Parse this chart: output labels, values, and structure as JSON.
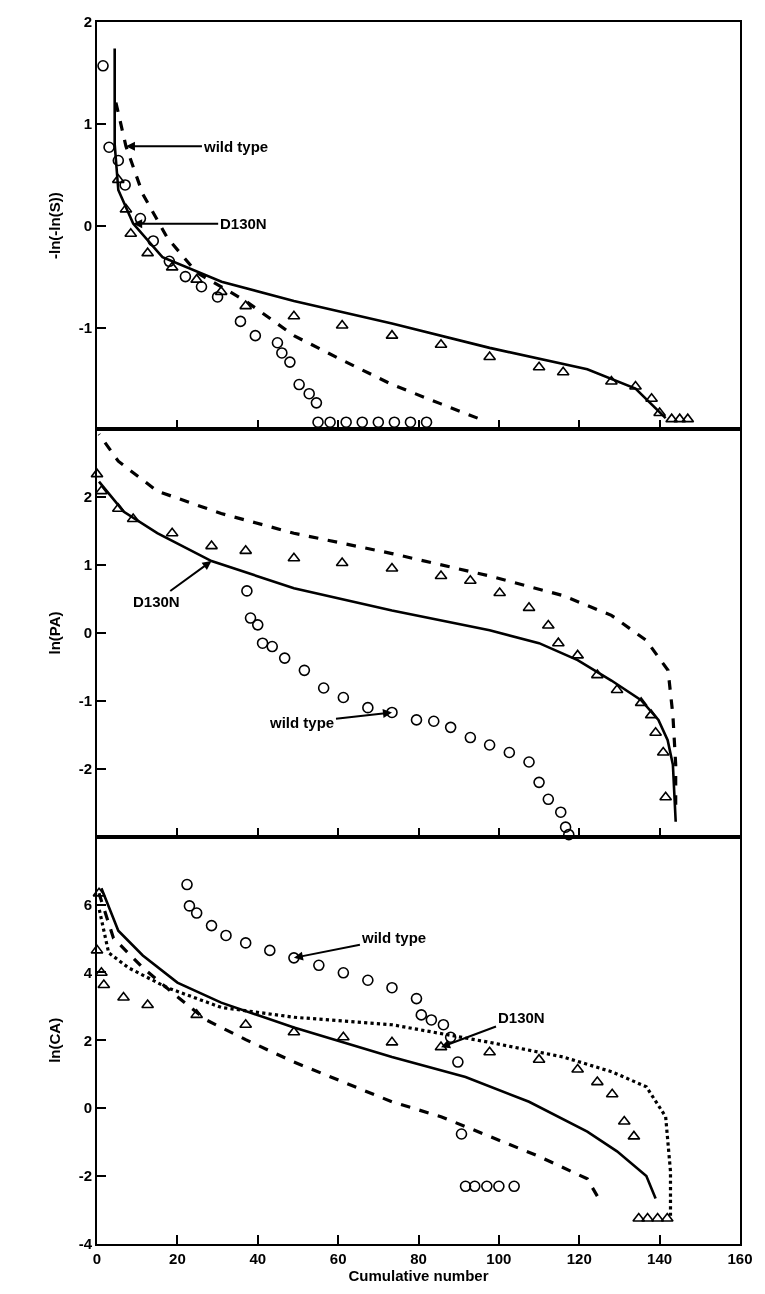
{
  "chart_data": [
    {
      "type": "scatter",
      "ylabel": "-ln(-ln(S))",
      "xlim": [
        0,
        160
      ],
      "xticks": [
        0,
        20,
        40,
        60,
        80,
        100,
        120,
        140,
        160
      ],
      "ylim": [
        -2,
        2
      ],
      "yticks": [
        -1,
        0,
        1,
        2
      ],
      "tick_labels": "y",
      "series": [
        {
          "marker": "circle",
          "color": "#000000",
          "x": [
            1.5,
            3,
            5.3,
            7,
            10.8,
            14,
            18,
            22,
            26,
            30,
            35.7,
            39.4,
            44.9,
            46,
            48,
            50.3,
            52.8,
            54.6,
            55,
            58,
            62,
            66,
            70,
            74,
            78,
            82
          ],
          "values": [
            1.57,
            0.77,
            0.64,
            0.4,
            0.07,
            -0.15,
            -0.35,
            -0.5,
            -0.6,
            -0.7,
            -0.94,
            -1.08,
            -1.15,
            -1.25,
            -1.34,
            -1.56,
            -1.65,
            -1.74,
            -1.93,
            -1.93,
            -1.93,
            -1.93,
            -1.93,
            -1.93,
            -1.93,
            -1.93
          ]
        },
        {
          "marker": "triangle",
          "color": "#000000",
          "x": [
            5.3,
            7.2,
            8.4,
            12.6,
            18.7,
            24.8,
            30.9,
            37,
            49,
            61,
            73.4,
            85.6,
            97.7,
            110,
            116,
            128,
            134,
            138,
            140,
            143,
            145,
            147
          ],
          "values": [
            0.45,
            0.16,
            -0.08,
            -0.27,
            -0.41,
            -0.53,
            -0.65,
            -0.79,
            -0.89,
            -0.98,
            -1.08,
            -1.17,
            -1.29,
            -1.39,
            -1.44,
            -1.53,
            -1.58,
            -1.7,
            -1.84,
            -1.9,
            -1.9,
            -1.9
          ]
        },
        {
          "type": "line",
          "line_style": "solid",
          "color": "#000000",
          "x": [
            4.4,
            4.4,
            5.3,
            9,
            16.3,
            31,
            49,
            73.4,
            97.7,
            122,
            134,
            141.5
          ],
          "values": [
            1.74,
            0.8,
            0.35,
            0.02,
            -0.31,
            -0.55,
            -0.74,
            -0.96,
            -1.2,
            -1.41,
            -1.6,
            -1.89
          ]
        },
        {
          "type": "line",
          "line_style": "dashed",
          "color": "#000000",
          "x": [
            4.7,
            7.2,
            11.4,
            17.5,
            24.8,
            37,
            49,
            61,
            73.4,
            85.6,
            94.7
          ],
          "values": [
            1.21,
            0.78,
            0.31,
            -0.12,
            -0.46,
            -0.74,
            -1.08,
            -1.32,
            -1.56,
            -1.75,
            -1.89
          ]
        }
      ],
      "annotations": [
        {
          "text": "wild type",
          "x": 7.2,
          "y": 0.78
        },
        {
          "text": "D130N",
          "x": 9,
          "y": 0.02
        }
      ]
    },
    {
      "type": "scatter",
      "ylabel": "ln(PA)",
      "xlim": [
        0,
        160
      ],
      "xticks": [
        0,
        20,
        40,
        60,
        80,
        100,
        120,
        140,
        160
      ],
      "ylim": [
        -3,
        3
      ],
      "yticks": [
        -2,
        -1,
        0,
        1,
        2
      ],
      "tick_labels": "y",
      "series": [
        {
          "marker": "circle",
          "color": "#000000",
          "x": [
            37.3,
            38.2,
            40,
            41.2,
            43.6,
            46.7,
            51.6,
            56.4,
            61.3,
            67.4,
            73.4,
            79.5,
            83.8,
            88,
            92.9,
            97.7,
            102.6,
            107.5,
            110,
            112.3,
            115.4,
            116.6,
            117.4
          ],
          "values": [
            0.62,
            0.22,
            0.12,
            -0.15,
            -0.2,
            -0.37,
            -0.55,
            -0.81,
            -0.95,
            -1.1,
            -1.17,
            -1.28,
            -1.3,
            -1.39,
            -1.54,
            -1.65,
            -1.76,
            -1.9,
            -2.2,
            -2.45,
            -2.64,
            -2.86,
            -2.97
          ]
        },
        {
          "marker": "triangle",
          "color": "#000000",
          "x": [
            0,
            1.1,
            5.3,
            9,
            18.7,
            28.5,
            37,
            49,
            61,
            73.4,
            85.6,
            92.9,
            100.2,
            107.5,
            112.3,
            114.8,
            119.6,
            124.5,
            129.4,
            135.4,
            137.9,
            139,
            140.9,
            141.5
          ],
          "values": [
            2.34,
            2.09,
            1.83,
            1.68,
            1.47,
            1.28,
            1.21,
            1.1,
            1.03,
            0.95,
            0.84,
            0.77,
            0.59,
            0.37,
            0.11,
            -0.15,
            -0.33,
            -0.62,
            -0.84,
            -1.03,
            -1.21,
            -1.47,
            -1.76,
            -2.42
          ]
        },
        {
          "type": "line",
          "line_style": "solid",
          "color": "#000000",
          "x": [
            0.5,
            6.6,
            15,
            28.5,
            49,
            73.4,
            97.7,
            110,
            119.6,
            128,
            135.4,
            139.7,
            142,
            143.3,
            144
          ],
          "values": [
            2.23,
            1.79,
            1.47,
            1.06,
            0.66,
            0.33,
            0.04,
            -0.15,
            -0.4,
            -0.7,
            -0.99,
            -1.28,
            -1.58,
            -1.94,
            -2.78
          ]
        },
        {
          "type": "line",
          "line_style": "dashed",
          "color": "#000000",
          "x": [
            0.5,
            5.3,
            15,
            30.9,
            49,
            73.4,
            97.7,
            116,
            128,
            136.7,
            142.1,
            143.3,
            144,
            144
          ],
          "values": [
            2.93,
            2.53,
            2.09,
            1.76,
            1.47,
            1.17,
            0.84,
            0.55,
            0.26,
            -0.11,
            -0.55,
            -1.21,
            -1.94,
            -2.53
          ]
        }
      ],
      "annotations": [
        {
          "text": "D130N",
          "x": 28.5,
          "y": 1.06
        },
        {
          "text": "wild type",
          "x": 73.4,
          "y": -1.17
        }
      ]
    },
    {
      "type": "scatter",
      "ylabel": "ln(CA)",
      "xlabel": "Cumulative number",
      "xlim": [
        0,
        160
      ],
      "xticks": [
        0,
        20,
        40,
        60,
        80,
        100,
        120,
        140,
        160
      ],
      "ylim": [
        -4,
        8
      ],
      "yticks": [
        -4,
        -2,
        0,
        2,
        4,
        6
      ],
      "series": [
        {
          "marker": "circle",
          "color": "#000000",
          "x": [
            22.4,
            23,
            24.8,
            28.5,
            32.1,
            37,
            43,
            49,
            55.2,
            61.3,
            67.4,
            73.4,
            79.5,
            80.7,
            83.2,
            86.2,
            88,
            89.8,
            90.7,
            91.7,
            94,
            97,
            100,
            103.8
          ],
          "values": [
            6.59,
            5.96,
            5.75,
            5.38,
            5.09,
            4.87,
            4.65,
            4.43,
            4.21,
            3.99,
            3.77,
            3.55,
            3.23,
            2.75,
            2.6,
            2.46,
            2.09,
            1.36,
            -0.76,
            -2.3,
            -2.3,
            -2.3,
            -2.3,
            -2.3
          ]
        },
        {
          "marker": "triangle",
          "color": "#000000",
          "x": [
            0,
            0.5,
            1.1,
            1.7,
            6.6,
            12.6,
            24.8,
            37,
            49,
            61.3,
            73.4,
            85.6,
            97.7,
            110,
            119.6,
            124.5,
            128.2,
            131.2,
            133.6,
            134.8,
            137,
            139.5,
            141.9
          ],
          "values": [
            4.65,
            6.33,
            3.99,
            3.63,
            3.26,
            3.04,
            2.75,
            2.46,
            2.24,
            2.09,
            1.94,
            1.8,
            1.65,
            1.43,
            1.14,
            0.77,
            0.41,
            -0.39,
            -0.83,
            -3.25,
            -3.25,
            -3.25,
            -3.25
          ]
        },
        {
          "type": "line",
          "line_style": "solid",
          "color": "#000000",
          "x": [
            1.1,
            5.3,
            11.4,
            20,
            30.9,
            49,
            73.4,
            91.7,
            107.5,
            122,
            129.4,
            136.7,
            139
          ],
          "values": [
            6.48,
            5.23,
            4.5,
            3.7,
            3.11,
            2.38,
            1.51,
            0.92,
            0.19,
            -0.69,
            -1.27,
            -2.0,
            -2.66
          ]
        },
        {
          "type": "line",
          "line_style": "dashed",
          "color": "#000000",
          "x": [
            0.5,
            4.1,
            11.4,
            18.7,
            27.2,
            37,
            49,
            61.3,
            73.4,
            85.6,
            97.7,
            110,
            122,
            124.5
          ],
          "values": [
            6.33,
            5.01,
            4.14,
            3.41,
            2.6,
            2.02,
            1.36,
            0.77,
            0.19,
            -0.25,
            -0.83,
            -1.42,
            -2.08,
            -2.59
          ]
        },
        {
          "type": "line",
          "line_style": "dotted",
          "color": "#000000",
          "x": [
            0.5,
            2.9,
            7.8,
            17.5,
            30.9,
            49,
            73.4,
            97.7,
            116,
            128.2,
            136.7,
            141.5,
            142.7,
            142.7
          ],
          "values": [
            5.89,
            4.58,
            4.14,
            3.55,
            2.97,
            2.68,
            2.46,
            1.94,
            1.51,
            1.07,
            0.63,
            -0.25,
            -1.86,
            -3.17
          ]
        }
      ],
      "annotations": [
        {
          "text": "wild type",
          "x": 49,
          "y": 4.43
        },
        {
          "text": "D130N",
          "x": 85.6,
          "y": 1.8
        }
      ]
    }
  ]
}
